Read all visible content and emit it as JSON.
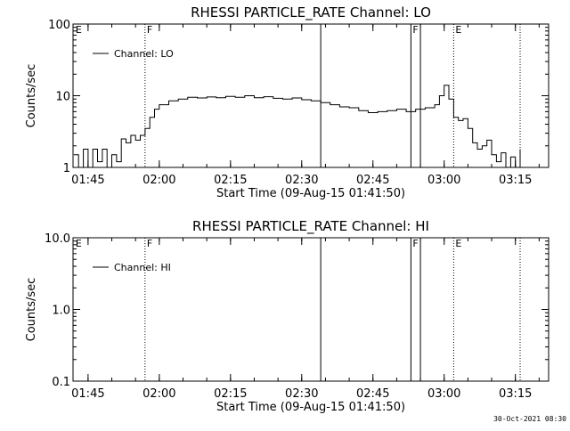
{
  "footer": {
    "timestamp": "30-Oct-2021 08:30"
  },
  "chart_data": [
    {
      "type": "line",
      "title": "RHESSI PARTICLE_RATE Channel: LO",
      "xlabel": "Start Time (09-Aug-15 01:41:50)",
      "ylabel": "Counts/sec",
      "y_scale": "log",
      "ylim": [
        1,
        100
      ],
      "yticks": [
        "1",
        "10",
        "100"
      ],
      "xlim": [
        "01:41:50",
        "03:22:00"
      ],
      "xticks": [
        "01:45",
        "02:00",
        "02:15",
        "02:30",
        "02:45",
        "03:00",
        "03:15"
      ],
      "legend": {
        "position": "top-left",
        "entries": [
          "Channel: LO"
        ]
      },
      "markers": [
        {
          "time": "01:42",
          "label": "E",
          "style": "none"
        },
        {
          "time": "01:57",
          "label": "F",
          "style": "dotted"
        },
        {
          "time": "02:34",
          "label": "",
          "style": "solid"
        },
        {
          "time": "02:53",
          "label": "F",
          "style": "solid"
        },
        {
          "time": "02:55",
          "label": "",
          "style": "solid"
        },
        {
          "time": "03:02",
          "label": "E",
          "style": "dotted"
        },
        {
          "time": "03:16",
          "label": "",
          "style": "dotted"
        }
      ],
      "series": [
        {
          "name": "Channel: LO",
          "x": [
            "01:42",
            "01:43",
            "01:44",
            "01:45",
            "01:46",
            "01:47",
            "01:48",
            "01:49",
            "01:50",
            "01:51",
            "01:52",
            "01:53",
            "01:54",
            "01:55",
            "01:56",
            "01:57",
            "01:58",
            "01:59",
            "02:00",
            "02:02",
            "02:04",
            "02:06",
            "02:08",
            "02:10",
            "02:12",
            "02:14",
            "02:16",
            "02:18",
            "02:20",
            "02:22",
            "02:24",
            "02:26",
            "02:28",
            "02:30",
            "02:32",
            "02:34",
            "02:36",
            "02:38",
            "02:40",
            "02:42",
            "02:44",
            "02:46",
            "02:48",
            "02:50",
            "02:52",
            "02:54",
            "02:56",
            "02:58",
            "02:59",
            "03:00",
            "03:01",
            "03:02",
            "03:03",
            "03:04",
            "03:05",
            "03:06",
            "03:07",
            "03:08",
            "03:09",
            "03:10",
            "03:11",
            "03:12",
            "03:13",
            "03:14",
            "03:15",
            "03:16"
          ],
          "values": [
            1.5,
            1.0,
            1.8,
            1.0,
            1.8,
            1.2,
            1.8,
            1.0,
            1.5,
            1.2,
            2.5,
            2.2,
            2.8,
            2.4,
            2.8,
            3.5,
            5.0,
            6.5,
            7.5,
            8.5,
            9.0,
            9.5,
            9.3,
            9.6,
            9.4,
            9.8,
            9.5,
            10.0,
            9.4,
            9.7,
            9.2,
            9.0,
            9.3,
            8.8,
            8.5,
            8.0,
            7.5,
            7.0,
            6.8,
            6.2,
            5.8,
            6.0,
            6.2,
            6.5,
            6.0,
            6.5,
            6.8,
            7.5,
            10.0,
            14.0,
            9.0,
            5.0,
            4.5,
            4.8,
            3.5,
            2.2,
            1.8,
            2.0,
            2.4,
            1.5,
            1.2,
            1.6,
            1.0,
            1.4,
            1.0,
            1.8
          ]
        }
      ]
    },
    {
      "type": "line",
      "title": "RHESSI PARTICLE_RATE Channel: HI",
      "xlabel": "Start Time (09-Aug-15 01:41:50)",
      "ylabel": "Counts/sec",
      "y_scale": "log",
      "ylim": [
        0.1,
        10
      ],
      "yticks": [
        "0.1",
        "1.0",
        "10.0"
      ],
      "xlim": [
        "01:41:50",
        "03:22:00"
      ],
      "xticks": [
        "01:45",
        "02:00",
        "02:15",
        "02:30",
        "02:45",
        "03:00",
        "03:15"
      ],
      "legend": {
        "position": "top-left",
        "entries": [
          "Channel: HI"
        ]
      },
      "markers": [
        {
          "time": "01:42",
          "label": "E",
          "style": "none"
        },
        {
          "time": "01:57",
          "label": "F",
          "style": "dotted"
        },
        {
          "time": "02:34",
          "label": "",
          "style": "solid"
        },
        {
          "time": "02:53",
          "label": "F",
          "style": "solid"
        },
        {
          "time": "02:55",
          "label": "",
          "style": "solid"
        },
        {
          "time": "03:02",
          "label": "E",
          "style": "dotted"
        },
        {
          "time": "03:16",
          "label": "",
          "style": "dotted"
        }
      ],
      "series": [
        {
          "name": "Channel: HI",
          "x": [],
          "values": []
        }
      ]
    }
  ]
}
